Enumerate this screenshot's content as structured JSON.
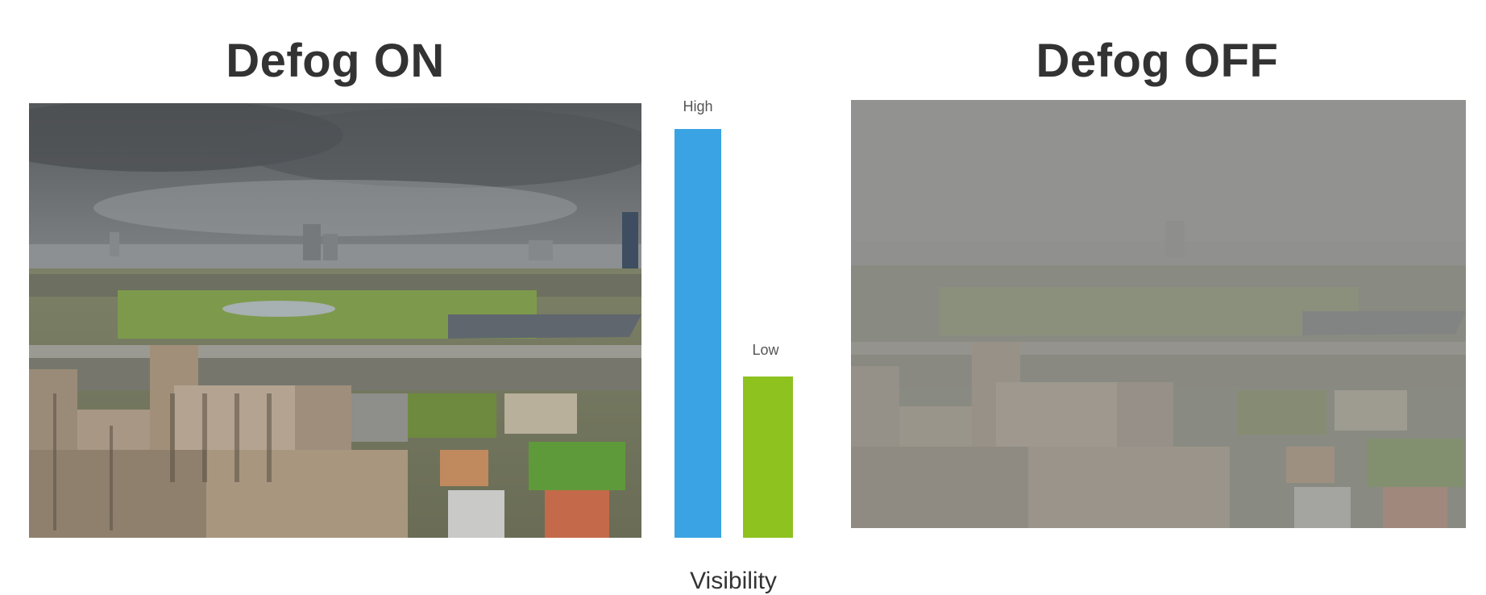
{
  "titles": {
    "defog_on": "Defog ON",
    "defog_off": "Defog OFF"
  },
  "visibility_bars": {
    "axis_caption": "Visibility",
    "high": {
      "label": "High",
      "level": 1.0,
      "color": "#3aa3e3"
    },
    "low": {
      "label": "Low",
      "level": 0.395,
      "color": "#8dc21f"
    }
  },
  "images": {
    "defog_on": {
      "kind": "photo",
      "subject": "city-skyline-cloudy-clear"
    },
    "defog_off": {
      "kind": "photo",
      "subject": "city-skyline-cloudy-hazy"
    }
  }
}
